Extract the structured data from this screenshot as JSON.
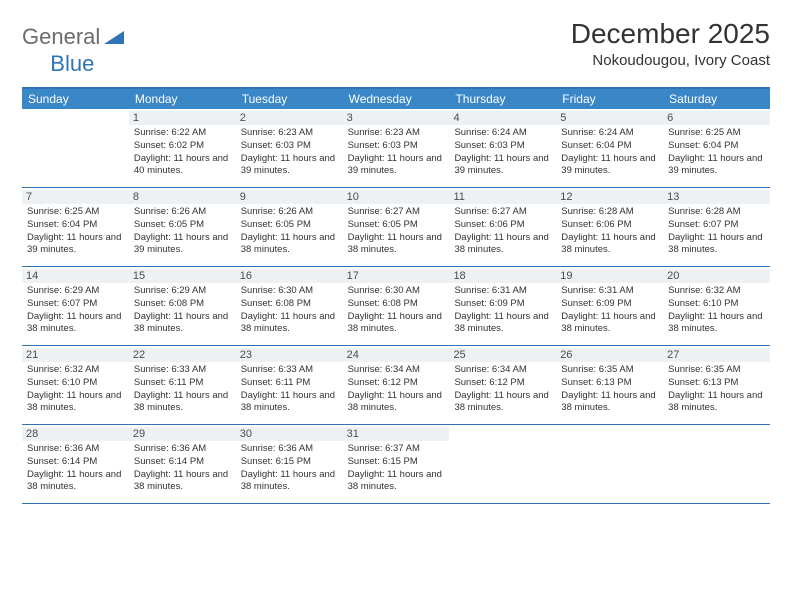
{
  "brand": {
    "part1": "General",
    "part2": "Blue"
  },
  "title": "December 2025",
  "location": "Nokoudougou, Ivory Coast",
  "colors": {
    "header_bg": "#3a87c8",
    "border": "#2f75b5",
    "daynum_bg": "#eef1f4",
    "text": "#333333",
    "logo_gray": "#6a6c6e",
    "logo_blue": "#2f75b5"
  },
  "day_names": [
    "Sunday",
    "Monday",
    "Tuesday",
    "Wednesday",
    "Thursday",
    "Friday",
    "Saturday"
  ],
  "weeks": [
    [
      null,
      {
        "n": "1",
        "sr": "6:22 AM",
        "ss": "6:02 PM",
        "dl": "11 hours and 40 minutes."
      },
      {
        "n": "2",
        "sr": "6:23 AM",
        "ss": "6:03 PM",
        "dl": "11 hours and 39 minutes."
      },
      {
        "n": "3",
        "sr": "6:23 AM",
        "ss": "6:03 PM",
        "dl": "11 hours and 39 minutes."
      },
      {
        "n": "4",
        "sr": "6:24 AM",
        "ss": "6:03 PM",
        "dl": "11 hours and 39 minutes."
      },
      {
        "n": "5",
        "sr": "6:24 AM",
        "ss": "6:04 PM",
        "dl": "11 hours and 39 minutes."
      },
      {
        "n": "6",
        "sr": "6:25 AM",
        "ss": "6:04 PM",
        "dl": "11 hours and 39 minutes."
      }
    ],
    [
      {
        "n": "7",
        "sr": "6:25 AM",
        "ss": "6:04 PM",
        "dl": "11 hours and 39 minutes."
      },
      {
        "n": "8",
        "sr": "6:26 AM",
        "ss": "6:05 PM",
        "dl": "11 hours and 39 minutes."
      },
      {
        "n": "9",
        "sr": "6:26 AM",
        "ss": "6:05 PM",
        "dl": "11 hours and 38 minutes."
      },
      {
        "n": "10",
        "sr": "6:27 AM",
        "ss": "6:05 PM",
        "dl": "11 hours and 38 minutes."
      },
      {
        "n": "11",
        "sr": "6:27 AM",
        "ss": "6:06 PM",
        "dl": "11 hours and 38 minutes."
      },
      {
        "n": "12",
        "sr": "6:28 AM",
        "ss": "6:06 PM",
        "dl": "11 hours and 38 minutes."
      },
      {
        "n": "13",
        "sr": "6:28 AM",
        "ss": "6:07 PM",
        "dl": "11 hours and 38 minutes."
      }
    ],
    [
      {
        "n": "14",
        "sr": "6:29 AM",
        "ss": "6:07 PM",
        "dl": "11 hours and 38 minutes."
      },
      {
        "n": "15",
        "sr": "6:29 AM",
        "ss": "6:08 PM",
        "dl": "11 hours and 38 minutes."
      },
      {
        "n": "16",
        "sr": "6:30 AM",
        "ss": "6:08 PM",
        "dl": "11 hours and 38 minutes."
      },
      {
        "n": "17",
        "sr": "6:30 AM",
        "ss": "6:08 PM",
        "dl": "11 hours and 38 minutes."
      },
      {
        "n": "18",
        "sr": "6:31 AM",
        "ss": "6:09 PM",
        "dl": "11 hours and 38 minutes."
      },
      {
        "n": "19",
        "sr": "6:31 AM",
        "ss": "6:09 PM",
        "dl": "11 hours and 38 minutes."
      },
      {
        "n": "20",
        "sr": "6:32 AM",
        "ss": "6:10 PM",
        "dl": "11 hours and 38 minutes."
      }
    ],
    [
      {
        "n": "21",
        "sr": "6:32 AM",
        "ss": "6:10 PM",
        "dl": "11 hours and 38 minutes."
      },
      {
        "n": "22",
        "sr": "6:33 AM",
        "ss": "6:11 PM",
        "dl": "11 hours and 38 minutes."
      },
      {
        "n": "23",
        "sr": "6:33 AM",
        "ss": "6:11 PM",
        "dl": "11 hours and 38 minutes."
      },
      {
        "n": "24",
        "sr": "6:34 AM",
        "ss": "6:12 PM",
        "dl": "11 hours and 38 minutes."
      },
      {
        "n": "25",
        "sr": "6:34 AM",
        "ss": "6:12 PM",
        "dl": "11 hours and 38 minutes."
      },
      {
        "n": "26",
        "sr": "6:35 AM",
        "ss": "6:13 PM",
        "dl": "11 hours and 38 minutes."
      },
      {
        "n": "27",
        "sr": "6:35 AM",
        "ss": "6:13 PM",
        "dl": "11 hours and 38 minutes."
      }
    ],
    [
      {
        "n": "28",
        "sr": "6:36 AM",
        "ss": "6:14 PM",
        "dl": "11 hours and 38 minutes."
      },
      {
        "n": "29",
        "sr": "6:36 AM",
        "ss": "6:14 PM",
        "dl": "11 hours and 38 minutes."
      },
      {
        "n": "30",
        "sr": "6:36 AM",
        "ss": "6:15 PM",
        "dl": "11 hours and 38 minutes."
      },
      {
        "n": "31",
        "sr": "6:37 AM",
        "ss": "6:15 PM",
        "dl": "11 hours and 38 minutes."
      },
      null,
      null,
      null
    ]
  ],
  "labels": {
    "sunrise": "Sunrise:",
    "sunset": "Sunset:",
    "daylight": "Daylight:"
  }
}
